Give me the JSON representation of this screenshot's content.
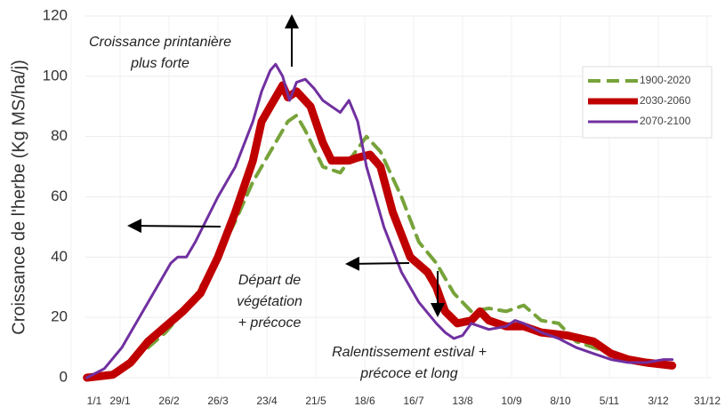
{
  "chart_data": {
    "type": "line",
    "y_label": "Croissance de l'herbe (Kg MS/ha/j)",
    "xlim": [
      1,
      365
    ],
    "ylim": [
      0,
      120
    ],
    "xticks": [
      {
        "value": 1,
        "label": "1/1"
      },
      {
        "value": 29,
        "label": "29/1"
      },
      {
        "value": 57,
        "label": "26/2"
      },
      {
        "value": 85,
        "label": "26/3"
      },
      {
        "value": 113,
        "label": "23/4"
      },
      {
        "value": 141,
        "label": "21/5"
      },
      {
        "value": 169,
        "label": "18/6"
      },
      {
        "value": 197,
        "label": "16/7"
      },
      {
        "value": 225,
        "label": "13/8"
      },
      {
        "value": 253,
        "label": "10/9"
      },
      {
        "value": 281,
        "label": "8/10"
      },
      {
        "value": 309,
        "label": "5/11"
      },
      {
        "value": 337,
        "label": "3/12"
      },
      {
        "value": 365,
        "label": "31/12"
      }
    ],
    "yticks": [
      0,
      20,
      40,
      60,
      80,
      100,
      120
    ],
    "grid": true,
    "legend": "upper right",
    "series": [
      {
        "name": "1900-2020",
        "color": "#77a33a",
        "dash": true,
        "width": 4,
        "x": [
          15,
          30,
          45,
          55,
          70,
          85,
          95,
          105,
          115,
          125,
          130,
          135,
          145,
          155,
          165,
          170,
          178,
          190,
          200,
          210,
          220,
          230,
          240,
          250,
          260,
          270,
          280,
          290,
          300,
          310,
          320,
          330,
          345
        ],
        "values": [
          0,
          3,
          10,
          15,
          25,
          40,
          52,
          65,
          75,
          85,
          87,
          82,
          70,
          68,
          76,
          80,
          75,
          60,
          45,
          38,
          28,
          22,
          23,
          22,
          24,
          19,
          18,
          12,
          10,
          8,
          6,
          5,
          4
        ]
      },
      {
        "name": "2030-2060",
        "color": "#c00000",
        "dash": false,
        "width": 9,
        "x": [
          10,
          25,
          35,
          45,
          55,
          65,
          75,
          85,
          95,
          105,
          110,
          115,
          120,
          122,
          125,
          130,
          138,
          145,
          150,
          160,
          165,
          172,
          178,
          185,
          195,
          205,
          210,
          215,
          222,
          230,
          235,
          240,
          250,
          260,
          270,
          285,
          300,
          310,
          320,
          330,
          345
        ],
        "values": [
          0,
          1,
          5,
          12,
          17,
          22,
          28,
          40,
          55,
          72,
          85,
          90,
          95,
          97,
          93,
          95,
          90,
          78,
          72,
          72,
          73,
          74,
          70,
          55,
          40,
          35,
          30,
          22,
          18,
          19,
          22,
          19,
          17,
          17,
          15,
          14,
          12,
          8,
          6,
          5,
          4
        ]
      },
      {
        "name": "2070-2100",
        "color": "#7030a0",
        "dash": false,
        "width": 3,
        "x": [
          10,
          20,
          30,
          40,
          50,
          58,
          62,
          67,
          72,
          85,
          95,
          105,
          110,
          115,
          118,
          122,
          126,
          130,
          135,
          140,
          145,
          150,
          155,
          160,
          165,
          170,
          175,
          180,
          190,
          200,
          210,
          215,
          220,
          225,
          230,
          240,
          250,
          255,
          260,
          270,
          280,
          290,
          300,
          310,
          320,
          330,
          340,
          345
        ],
        "values": [
          0,
          3,
          10,
          20,
          30,
          38,
          40,
          40,
          45,
          60,
          70,
          85,
          95,
          102,
          104,
          100,
          92,
          98,
          99,
          96,
          92,
          90,
          88,
          92,
          85,
          70,
          60,
          50,
          35,
          25,
          18,
          15,
          13,
          14,
          18,
          16,
          17,
          19,
          18,
          15,
          13,
          10,
          8,
          6,
          5,
          5,
          6,
          6
        ]
      }
    ],
    "annotations": [
      {
        "lines": [
          "Croissance printanière",
          "plus forte"
        ]
      },
      {
        "lines": [
          "Départ de",
          "végétation",
          "+ précoce"
        ]
      },
      {
        "lines": [
          "Ralentissement estival +",
          "précoce et long"
        ]
      }
    ]
  }
}
